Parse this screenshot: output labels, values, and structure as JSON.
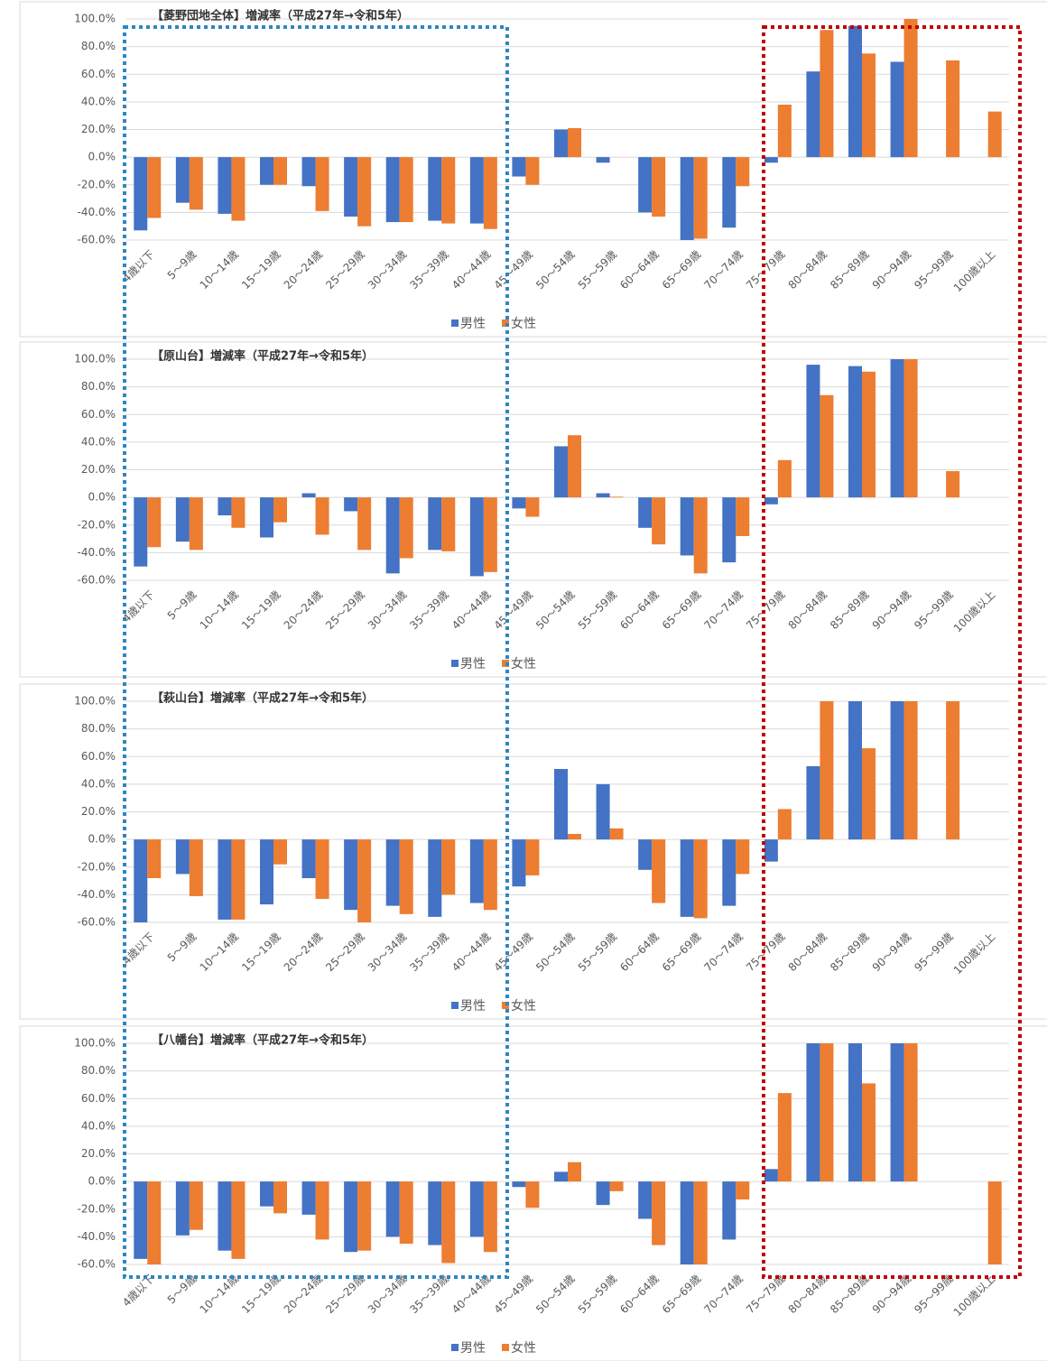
{
  "chart_data": [
    {
      "type": "bar",
      "title": "【菱野団地全体】増減率（平成27年→令和5年）",
      "categories": [
        "4歳以下",
        "5～9歳",
        "10～14歳",
        "15～19歳",
        "20～24歳",
        "25～29歳",
        "30～34歳",
        "35～39歳",
        "40～44歳",
        "45～49歳",
        "50～54歳",
        "55～59歳",
        "60～64歳",
        "65～69歳",
        "70～74歳",
        "75～79歳",
        "80～84歳",
        "85～89歳",
        "90～94歳",
        "95～99歳",
        "100歳以上"
      ],
      "series": [
        {
          "name": "男性",
          "color": "#4472c4",
          "values": [
            -53,
            -33,
            -41,
            -20,
            -21,
            -43,
            -47,
            -46,
            -48,
            -14,
            20,
            -4,
            -40,
            -61,
            -51,
            -4,
            62,
            95,
            69,
            null,
            null
          ]
        },
        {
          "name": "女性",
          "color": "#ed7d31",
          "values": [
            -44,
            -38,
            -46,
            -20,
            -39,
            -50,
            -47,
            -48,
            -52,
            -20,
            21,
            null,
            -43,
            -59,
            -21,
            38,
            92,
            75,
            100,
            70,
            33
          ]
        }
      ],
      "ylim": [
        -60,
        100
      ],
      "yticks": [
        {
          "value": -60,
          "label": "-60.0%"
        },
        {
          "value": -40,
          "label": "-40.0%"
        },
        {
          "value": -20,
          "label": "-20.0%"
        },
        {
          "value": 0,
          "label": "0.0%"
        },
        {
          "value": 20,
          "label": "20.0%"
        },
        {
          "value": 40,
          "label": "40.0%"
        },
        {
          "value": 60,
          "label": "60.0%"
        },
        {
          "value": 80,
          "label": "80.0%"
        },
        {
          "value": 100,
          "label": "100.0%"
        }
      ],
      "grid": true,
      "legend": "bottom"
    },
    {
      "type": "bar",
      "title": "【原山台】増減率（平成27年→令和5年）",
      "categories": [
        "4歳以下",
        "5～9歳",
        "10～14歳",
        "15～19歳",
        "20～24歳",
        "25～29歳",
        "30～34歳",
        "35～39歳",
        "40～44歳",
        "45～49歳",
        "50～54歳",
        "55～59歳",
        "60～64歳",
        "65～69歳",
        "70～74歳",
        "75～79歳",
        "80～84歳",
        "85～89歳",
        "90～94歳",
        "95～99歳",
        "100歳以上"
      ],
      "series": [
        {
          "name": "男性",
          "color": "#4472c4",
          "values": [
            -50,
            -32,
            -13,
            -29,
            3,
            -10,
            -55,
            -38,
            -57,
            -8,
            37,
            3,
            -22,
            -42,
            -47,
            -5,
            96,
            95,
            100,
            null,
            null
          ]
        },
        {
          "name": "女性",
          "color": "#ed7d31",
          "values": [
            -36,
            -38,
            -22,
            -18,
            -27,
            -38,
            -44,
            -39,
            -54,
            -14,
            45,
            0.5,
            -34,
            -55,
            -28,
            27,
            74,
            91,
            100,
            19,
            null
          ]
        }
      ],
      "ylim": [
        -60,
        100
      ],
      "yticks": [
        {
          "value": -60,
          "label": "-60.0%"
        },
        {
          "value": -40,
          "label": "-40.0%"
        },
        {
          "value": -20,
          "label": "-20.0%"
        },
        {
          "value": 0,
          "label": "0.0%"
        },
        {
          "value": 20,
          "label": "20.0%"
        },
        {
          "value": 40,
          "label": "40.0%"
        },
        {
          "value": 60,
          "label": "60.0%"
        },
        {
          "value": 80,
          "label": "80.0%"
        },
        {
          "value": 100,
          "label": "100.0%"
        }
      ],
      "grid": true,
      "legend": "bottom"
    },
    {
      "type": "bar",
      "title": "【萩山台】増減率（平成27年→令和5年）",
      "categories": [
        "4歳以下",
        "5～9歳",
        "10～14歳",
        "15～19歳",
        "20～24歳",
        "25～29歳",
        "30～34歳",
        "35～39歳",
        "40～44歳",
        "45～49歳",
        "50～54歳",
        "55～59歳",
        "60～64歳",
        "65～69歳",
        "70～74歳",
        "75～79歳",
        "80～84歳",
        "85～89歳",
        "90～94歳",
        "95～99歳",
        "100歳以上"
      ],
      "series": [
        {
          "name": "男性",
          "color": "#4472c4",
          "values": [
            -61,
            -25,
            -58,
            -47,
            -28,
            -51,
            -48,
            -56,
            -46,
            -34,
            51,
            40,
            -22,
            -56,
            -48,
            -16,
            53,
            100,
            100,
            null,
            null
          ]
        },
        {
          "name": "女性",
          "color": "#ed7d31",
          "values": [
            -28,
            -41,
            -58,
            -18,
            -43,
            -61,
            -54,
            -40,
            -51,
            -26,
            4,
            8,
            -46,
            -57,
            -25,
            22,
            100,
            66,
            100,
            100,
            null
          ]
        }
      ],
      "ylim": [
        -60,
        100
      ],
      "yticks": [
        {
          "value": -60,
          "label": "-60.0%"
        },
        {
          "value": -40,
          "label": "-40.0%"
        },
        {
          "value": -20,
          "label": "-20.0%"
        },
        {
          "value": 0,
          "label": "0.0%"
        },
        {
          "value": 20,
          "label": "20.0%"
        },
        {
          "value": 40,
          "label": "40.0%"
        },
        {
          "value": 60,
          "label": "60.0%"
        },
        {
          "value": 80,
          "label": "80.0%"
        },
        {
          "value": 100,
          "label": "100.0%"
        }
      ],
      "grid": true,
      "legend": "bottom"
    },
    {
      "type": "bar",
      "title": "【八幡台】増減率（平成27年→令和5年）",
      "categories": [
        "4歳以下",
        "5～9歳",
        "10～14歳",
        "15～19歳",
        "20～24歳",
        "25～29歳",
        "30～34歳",
        "35～39歳",
        "40～44歳",
        "45～49歳",
        "50～54歳",
        "55～59歳",
        "60～64歳",
        "65～69歳",
        "70～74歳",
        "75～79歳",
        "80～84歳",
        "85～89歳",
        "90～94歳",
        "95～99歳",
        "100歳以上"
      ],
      "series": [
        {
          "name": "男性",
          "color": "#4472c4",
          "values": [
            -56,
            -39,
            -50,
            -18,
            -24,
            -51,
            -40,
            -46,
            -40,
            -4,
            7,
            -17,
            -27,
            -61,
            -42,
            9,
            100,
            100,
            100,
            null,
            null
          ]
        },
        {
          "name": "女性",
          "color": "#ed7d31",
          "values": [
            -61,
            -35,
            -56,
            -23,
            -42,
            -50,
            -45,
            -59,
            -51,
            -19,
            14,
            -7,
            -46,
            -61,
            -13,
            64,
            100,
            71,
            100,
            null,
            -61
          ]
        }
      ],
      "ylim": [
        -60,
        100
      ],
      "yticks": [
        {
          "value": -60,
          "label": "-60.0%"
        },
        {
          "value": -40,
          "label": "-40.0%"
        },
        {
          "value": -20,
          "label": "-20.0%"
        },
        {
          "value": 0,
          "label": "0.0%"
        },
        {
          "value": 20,
          "label": "20.0%"
        },
        {
          "value": 40,
          "label": "40.0%"
        },
        {
          "value": 60,
          "label": "60.0%"
        },
        {
          "value": 80,
          "label": "80.0%"
        },
        {
          "value": 100,
          "label": "100.0%"
        }
      ],
      "grid": true,
      "legend": "bottom"
    }
  ]
}
